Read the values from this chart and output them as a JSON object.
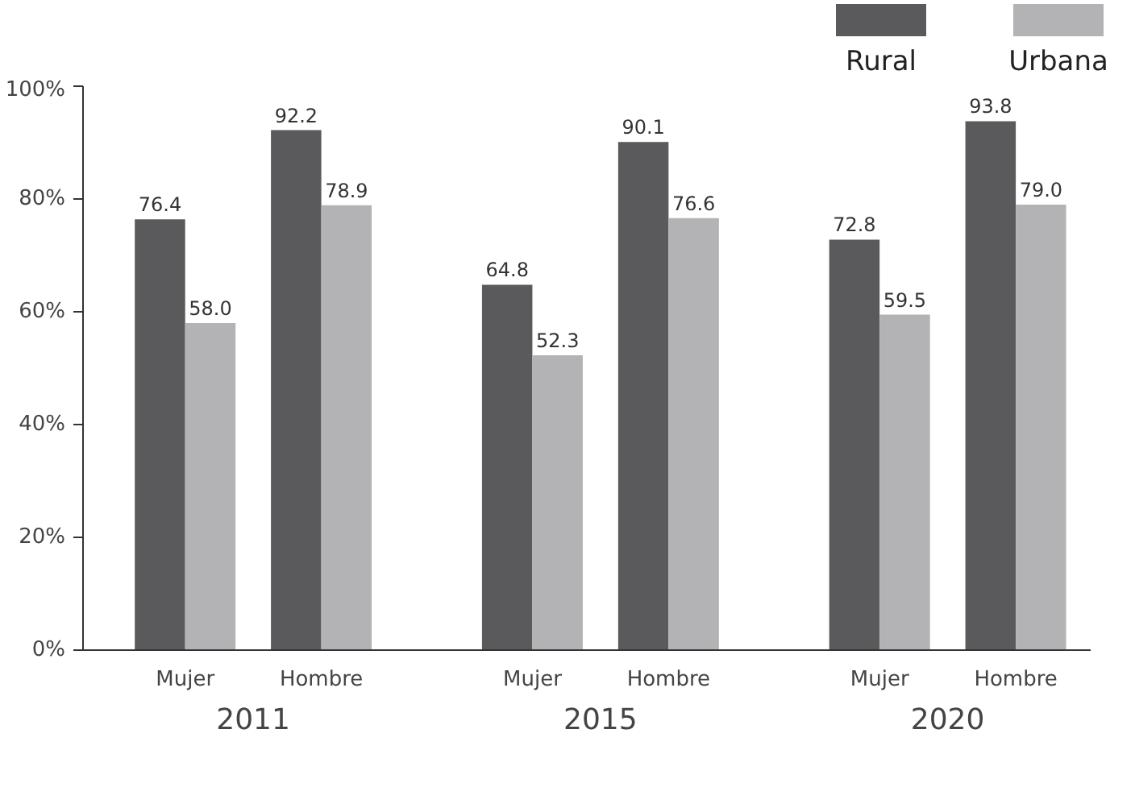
{
  "chart_data": {
    "type": "bar",
    "categories": [
      "Mujer",
      "Hombre",
      "Mujer",
      "Hombre",
      "Mujer",
      "Hombre"
    ],
    "series": [
      {
        "name": "Rural",
        "color": "#5a5a5c",
        "values": [
          76.4,
          92.2,
          64.8,
          90.1,
          72.8,
          93.8
        ],
        "value_labels": [
          "76.4",
          "92.2",
          "64.8",
          "90.1",
          "72.8",
          "93.8"
        ]
      },
      {
        "name": "Urbana",
        "color": "#b3b3b5",
        "values": [
          58.0,
          78.9,
          52.3,
          76.6,
          59.5,
          79.0
        ],
        "value_labels": [
          "58.0",
          "78.9",
          "52.3",
          "76.6",
          "59.5",
          "79.0"
        ]
      }
    ],
    "annotations": [
      "2011",
      "2015",
      "2020"
    ],
    "ylim": [
      0,
      100
    ],
    "yticks": [
      {
        "value": 0,
        "label": "0%"
      },
      {
        "value": 20,
        "label": "20%"
      },
      {
        "value": 40,
        "label": "40%"
      },
      {
        "value": 60,
        "label": "60%"
      },
      {
        "value": 80,
        "label": "80%"
      },
      {
        "value": 100,
        "label": "100%"
      }
    ],
    "legend": "top right",
    "grid": false
  }
}
